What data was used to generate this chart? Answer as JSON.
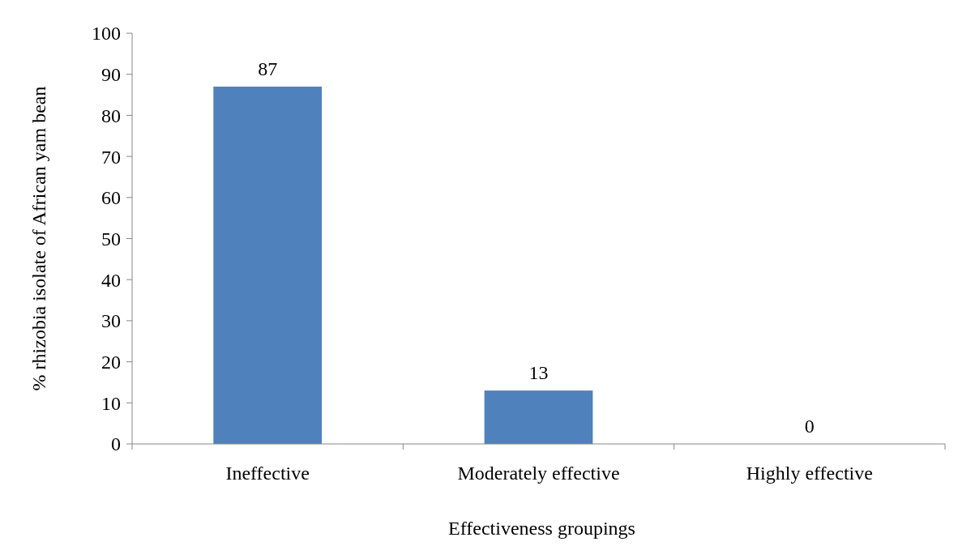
{
  "chart_data": {
    "type": "bar",
    "xlabel": "Effectiveness groupings",
    "ylabel": "% rhizobia isolate of African yam bean",
    "categories": [
      "Ineffective",
      "Moderately effective",
      "Highly effective"
    ],
    "values": [
      87,
      13,
      0
    ],
    "color": "#4f81bd",
    "data_labels": true,
    "ylim": [
      0,
      100
    ],
    "yticks": [
      0,
      10,
      20,
      30,
      40,
      50,
      60,
      70,
      80,
      90,
      100
    ],
    "grid": false
  }
}
